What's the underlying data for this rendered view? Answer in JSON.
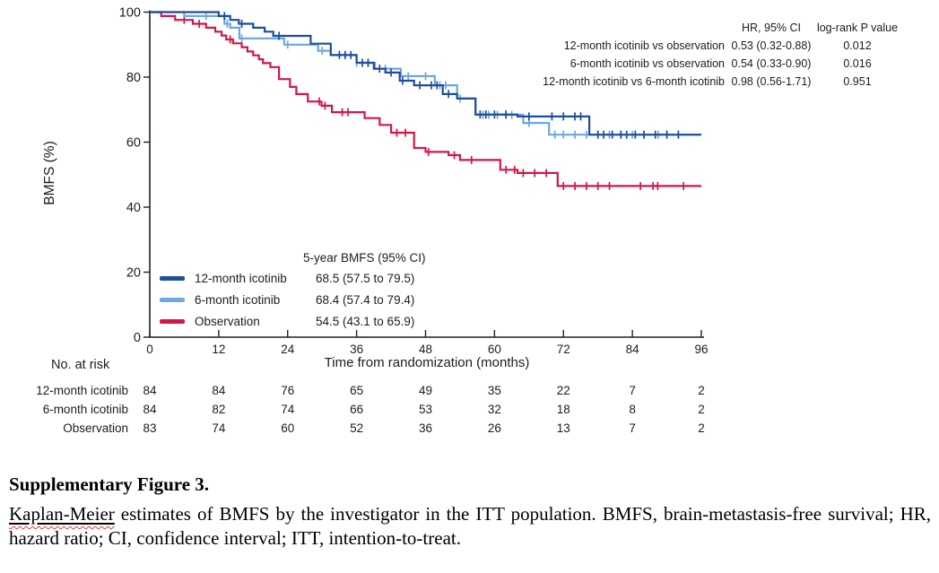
{
  "figure": {
    "caption_title": "Supplementary Figure 3.",
    "caption_underlined_word": "Kaplan-Meier",
    "caption_rest": " estimates of BMFS by the investigator in the ITT population. BMFS, brain-metastasis-free survival; HR, hazard ratio; CI, confidence interval; ITT, intention-to-treat."
  },
  "hr_table": {
    "header_hr": "HR, 95% CI",
    "header_p": "log-rank P value",
    "rows": [
      {
        "label": "12-month icotinib vs observation",
        "hr": "0.53 (0.32-0.88)",
        "p": "0.012"
      },
      {
        "label": "6-month icotinib vs observation",
        "hr": "0.54 (0.33-0.90)",
        "p": "0.016"
      },
      {
        "label": "12-month icotinib vs 6-month icotinib",
        "hr": "0.98 (0.56-1.71)",
        "p": "0.951"
      }
    ]
  },
  "legend": {
    "header": "5-year BMFS (95% CI)",
    "items": [
      {
        "label": "12-month icotinib",
        "value": "68.5 (57.5 to 79.5)",
        "color": "#1f4e9c"
      },
      {
        "label": "6-month icotinib",
        "value": "68.4 (57.4 to 79.4)",
        "color": "#6fa8dc"
      },
      {
        "label": "Observation",
        "value": "54.5 (43.1 to 65.9)",
        "color": "#d31745"
      }
    ]
  },
  "at_risk": {
    "title": "No. at risk",
    "rows": [
      {
        "label": "12-month icotinib",
        "values": [
          "84",
          "84",
          "76",
          "65",
          "49",
          "35",
          "22",
          "7",
          "2"
        ]
      },
      {
        "label": "6-month icotinib",
        "values": [
          "84",
          "82",
          "74",
          "66",
          "53",
          "32",
          "18",
          "8",
          "2"
        ]
      },
      {
        "label": "Observation",
        "values": [
          "83",
          "74",
          "60",
          "52",
          "36",
          "26",
          "13",
          "7",
          "2"
        ]
      }
    ]
  },
  "chart_data": {
    "type": "line",
    "subtype": "kaplan-meier-step-curves",
    "title": "",
    "xlabel": "Time from randomization (months)",
    "ylabel": "BMFS (%)",
    "xlim": [
      0,
      96
    ],
    "ylim": [
      0,
      100
    ],
    "x_ticks": [
      "0",
      "12",
      "24",
      "36",
      "48",
      "60",
      "72",
      "84",
      "96"
    ],
    "y_ticks": [
      "0",
      "20",
      "40",
      "60",
      "80",
      "100"
    ],
    "grid": false,
    "legend_position": "inside lower-left",
    "axis_color": "#231f20",
    "series": [
      {
        "name": "Observation",
        "color": "#d31745",
        "five_year_bmfs": "54.5 (43.1 to 65.9)",
        "steps": [
          [
            0,
            100
          ],
          [
            2,
            100
          ],
          [
            2,
            98.8
          ],
          [
            4.4,
            98.8
          ],
          [
            4.4,
            97.6
          ],
          [
            7.5,
            97.6
          ],
          [
            7.5,
            96.4
          ],
          [
            9.8,
            96.4
          ],
          [
            9.8,
            95.2
          ],
          [
            11.4,
            95.2
          ],
          [
            11.4,
            94
          ],
          [
            12.5,
            94
          ],
          [
            12.5,
            92.8
          ],
          [
            13.3,
            92.8
          ],
          [
            13.3,
            91.6
          ],
          [
            14.5,
            91.6
          ],
          [
            14.5,
            90.4
          ],
          [
            16,
            90.4
          ],
          [
            16,
            89.2
          ],
          [
            17,
            89.2
          ],
          [
            17,
            87.9
          ],
          [
            18,
            87.9
          ],
          [
            18,
            86.7
          ],
          [
            19,
            86.7
          ],
          [
            19,
            85.5
          ],
          [
            19.7,
            85.5
          ],
          [
            19.7,
            84.3
          ],
          [
            21,
            84.3
          ],
          [
            21,
            83.1
          ],
          [
            22.5,
            83.1
          ],
          [
            22.5,
            79.4
          ],
          [
            24.4,
            79.4
          ],
          [
            24.4,
            77
          ],
          [
            25.5,
            77
          ],
          [
            25.5,
            74.8
          ],
          [
            27.5,
            74.8
          ],
          [
            27.5,
            72.5
          ],
          [
            29.9,
            72.5
          ],
          [
            29.9,
            71.2
          ],
          [
            31.7,
            71.2
          ],
          [
            31.7,
            69.2
          ],
          [
            37.4,
            69.2
          ],
          [
            37.4,
            67.4
          ],
          [
            40,
            67.4
          ],
          [
            40,
            65.3
          ],
          [
            42,
            65.3
          ],
          [
            42,
            62.9
          ],
          [
            46,
            62.9
          ],
          [
            46,
            58.2
          ],
          [
            48,
            58.2
          ],
          [
            48,
            57
          ],
          [
            52,
            57
          ],
          [
            52,
            56
          ],
          [
            54,
            56
          ],
          [
            54,
            54.5
          ],
          [
            61,
            54.5
          ],
          [
            61,
            51.5
          ],
          [
            64,
            51.5
          ],
          [
            64,
            50.5
          ],
          [
            71,
            50.5
          ],
          [
            71,
            46.5
          ],
          [
            96,
            46.5
          ]
        ],
        "censor_marks": [
          6,
          8.6,
          14,
          29.5,
          30.5,
          33.5,
          34.5,
          43,
          44.5,
          48.5,
          53,
          56,
          62,
          63.5,
          65,
          67,
          69,
          72,
          74,
          76,
          78,
          80,
          85.4,
          87.6,
          88.4,
          92.9
        ]
      },
      {
        "name": "6-month icotinib",
        "color": "#6fa8dc",
        "five_year_bmfs": "68.4 (57.4 to 79.4)",
        "steps": [
          [
            0,
            100
          ],
          [
            6,
            100
          ],
          [
            6,
            98.8
          ],
          [
            13,
            98.8
          ],
          [
            13,
            96.4
          ],
          [
            14,
            96.4
          ],
          [
            14,
            95.2
          ],
          [
            15.6,
            95.2
          ],
          [
            15.6,
            91.9
          ],
          [
            23.4,
            91.9
          ],
          [
            23.4,
            90
          ],
          [
            29.3,
            90
          ],
          [
            29.3,
            88.1
          ],
          [
            31.5,
            88.1
          ],
          [
            31.5,
            86.8
          ],
          [
            36,
            86.8
          ],
          [
            36,
            84.4
          ],
          [
            39.2,
            84.4
          ],
          [
            39.2,
            82.6
          ],
          [
            43.7,
            82.6
          ],
          [
            43.7,
            80.3
          ],
          [
            49.6,
            80.3
          ],
          [
            49.6,
            77.5
          ],
          [
            53.5,
            77.5
          ],
          [
            53.5,
            73.4
          ],
          [
            56.7,
            73.4
          ],
          [
            56.7,
            68.4
          ],
          [
            65,
            68.4
          ],
          [
            65,
            65.9
          ],
          [
            69.5,
            65.9
          ],
          [
            69.5,
            62.3
          ],
          [
            96,
            62.3
          ]
        ],
        "censor_marks": [
          9.8,
          13.5,
          16,
          24,
          30,
          34,
          36,
          38,
          41,
          45,
          48,
          50.5,
          51.5,
          54,
          58,
          59,
          60.5,
          62,
          63,
          66,
          70.5,
          72,
          74,
          76,
          78,
          80,
          82,
          84,
          86,
          88.5,
          90,
          92
        ]
      },
      {
        "name": "12-month icotinib",
        "color": "#1f4e9c",
        "five_year_bmfs": "68.5 (57.5 to 79.5)",
        "steps": [
          [
            0,
            100
          ],
          [
            12,
            100
          ],
          [
            12,
            98.8
          ],
          [
            14,
            98.8
          ],
          [
            14,
            97.6
          ],
          [
            15.5,
            97.6
          ],
          [
            15.5,
            96.4
          ],
          [
            18,
            96.4
          ],
          [
            18,
            95.2
          ],
          [
            20,
            95.2
          ],
          [
            20,
            94
          ],
          [
            21.5,
            94
          ],
          [
            21.5,
            92.7
          ],
          [
            28,
            92.7
          ],
          [
            28,
            90.3
          ],
          [
            31.5,
            90.3
          ],
          [
            31.5,
            86.8
          ],
          [
            36,
            86.8
          ],
          [
            36,
            84.4
          ],
          [
            39,
            84.4
          ],
          [
            39,
            82.6
          ],
          [
            41,
            82.6
          ],
          [
            41,
            81.4
          ],
          [
            43.5,
            81.4
          ],
          [
            43.5,
            78.9
          ],
          [
            46,
            78.9
          ],
          [
            46,
            77.5
          ],
          [
            51,
            77.5
          ],
          [
            51,
            74.8
          ],
          [
            53.5,
            74.8
          ],
          [
            53.5,
            73.4
          ],
          [
            56.7,
            73.4
          ],
          [
            56.7,
            68.5
          ],
          [
            64,
            68.5
          ],
          [
            64,
            67.9
          ],
          [
            76.5,
            67.9
          ],
          [
            76.5,
            62.3
          ],
          [
            96,
            62.3
          ]
        ],
        "censor_marks": [
          13,
          16,
          22.5,
          33,
          34,
          35,
          37,
          38,
          40,
          42,
          44,
          47,
          49,
          50,
          52,
          57.5,
          58.5,
          60,
          62,
          66,
          70,
          72,
          74,
          75,
          78,
          79,
          80.5,
          82,
          83,
          84.5,
          86,
          88,
          90,
          92
        ]
      }
    ]
  }
}
